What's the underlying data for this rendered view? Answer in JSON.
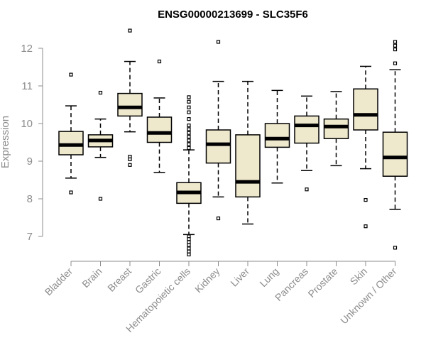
{
  "chart_data": {
    "type": "box",
    "title": "ENSG00000213699 - SLC35F6",
    "xlabel": "",
    "ylabel": "Expression",
    "ylim": [
      6.35,
      12.6
    ],
    "yticks": [
      7,
      8,
      9,
      10,
      11,
      12
    ],
    "grid": false,
    "box_color": "#eee8cd",
    "categories": [
      "Bladder",
      "Brain",
      "Breast",
      "Gastric",
      "Hematopoietic cells",
      "Kidney",
      "Liver",
      "Lung",
      "Pancreas",
      "Prostate",
      "Skin",
      "Unknown / Other"
    ],
    "series": [
      {
        "name": "Bladder",
        "whisker_low": 8.55,
        "q1": 9.17,
        "median": 9.43,
        "q3": 9.79,
        "whisker_high": 10.47,
        "outliers": [
          11.3,
          8.17
        ]
      },
      {
        "name": "Brain",
        "whisker_low": 9.1,
        "q1": 9.38,
        "median": 9.55,
        "q3": 9.7,
        "whisker_high": 10.12,
        "outliers": [
          10.82,
          8.0
        ]
      },
      {
        "name": "Breast",
        "whisker_low": 9.78,
        "q1": 10.2,
        "median": 10.43,
        "q3": 10.8,
        "whisker_high": 11.65,
        "outliers": [
          12.47,
          9.12,
          9.05,
          8.9
        ]
      },
      {
        "name": "Gastric",
        "whisker_low": 8.7,
        "q1": 9.5,
        "median": 9.75,
        "q3": 10.17,
        "whisker_high": 10.68,
        "outliers": [
          11.65
        ]
      },
      {
        "name": "Hematopoietic cells",
        "whisker_low": 7.05,
        "q1": 7.88,
        "median": 8.17,
        "q3": 8.43,
        "whisker_high": 9.3,
        "outliers": [
          10.7,
          10.58,
          10.43,
          10.3,
          10.12,
          9.95,
          9.85,
          9.75,
          9.65,
          9.55,
          9.45,
          9.35,
          7.0,
          6.93,
          6.85,
          6.77,
          6.68,
          6.6,
          6.52
        ]
      },
      {
        "name": "Kidney",
        "whisker_low": 8.05,
        "q1": 8.95,
        "median": 9.45,
        "q3": 9.83,
        "whisker_high": 11.12,
        "outliers": [
          12.17,
          7.48
        ]
      },
      {
        "name": "Liver",
        "whisker_low": 7.33,
        "q1": 8.05,
        "median": 8.45,
        "q3": 9.7,
        "whisker_high": 11.12,
        "outliers": []
      },
      {
        "name": "Lung",
        "whisker_low": 8.42,
        "q1": 9.37,
        "median": 9.6,
        "q3": 10.0,
        "whisker_high": 10.88,
        "outliers": []
      },
      {
        "name": "Pancreas",
        "whisker_low": 8.75,
        "q1": 9.48,
        "median": 9.95,
        "q3": 10.2,
        "whisker_high": 10.73,
        "outliers": [
          8.25
        ]
      },
      {
        "name": "Prostate",
        "whisker_low": 8.88,
        "q1": 9.6,
        "median": 9.92,
        "q3": 10.12,
        "whisker_high": 10.85,
        "outliers": []
      },
      {
        "name": "Skin",
        "whisker_low": 8.8,
        "q1": 9.83,
        "median": 10.23,
        "q3": 10.92,
        "whisker_high": 11.52,
        "outliers": [
          7.97,
          7.27
        ]
      },
      {
        "name": "Unknown / Other",
        "whisker_low": 7.72,
        "q1": 8.6,
        "median": 9.1,
        "q3": 9.77,
        "whisker_high": 11.43,
        "outliers": [
          12.17,
          12.07,
          11.97,
          11.6,
          6.7
        ]
      }
    ]
  }
}
